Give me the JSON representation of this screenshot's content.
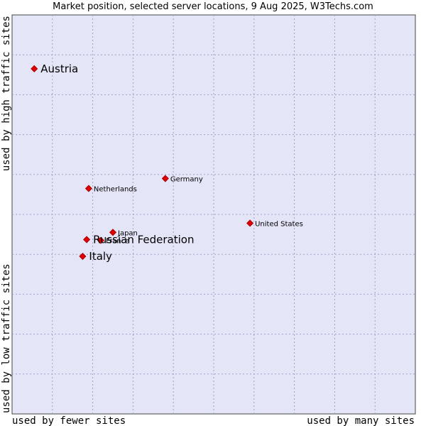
{
  "chart_data": {
    "type": "scatter",
    "title": "Market position, selected server locations, 9 Aug 2025, W3Techs.com",
    "xlabel_left": "used by fewer sites",
    "xlabel_right": "used by many sites",
    "ylabel_bottom": "used by low traffic sites",
    "ylabel_top": "used by high traffic sites",
    "xlim": [
      0,
      10
    ],
    "ylim": [
      0,
      10
    ],
    "grid": true,
    "points": [
      {
        "name": "Austria",
        "x": 0.55,
        "y": 8.65,
        "highlight": true
      },
      {
        "name": "Germany",
        "x": 3.8,
        "y": 5.9,
        "highlight": false
      },
      {
        "name": "Netherlands",
        "x": 1.9,
        "y": 5.65,
        "highlight": false
      },
      {
        "name": "United States",
        "x": 5.9,
        "y": 4.78,
        "highlight": false
      },
      {
        "name": "Japan",
        "x": 2.5,
        "y": 4.55,
        "highlight": false
      },
      {
        "name": "France",
        "x": 2.2,
        "y": 4.35,
        "highlight": false
      },
      {
        "name": "Russian Federation",
        "x": 1.85,
        "y": 4.37,
        "highlight": true
      },
      {
        "name": "Italy",
        "x": 1.75,
        "y": 3.95,
        "highlight": true
      }
    ]
  }
}
